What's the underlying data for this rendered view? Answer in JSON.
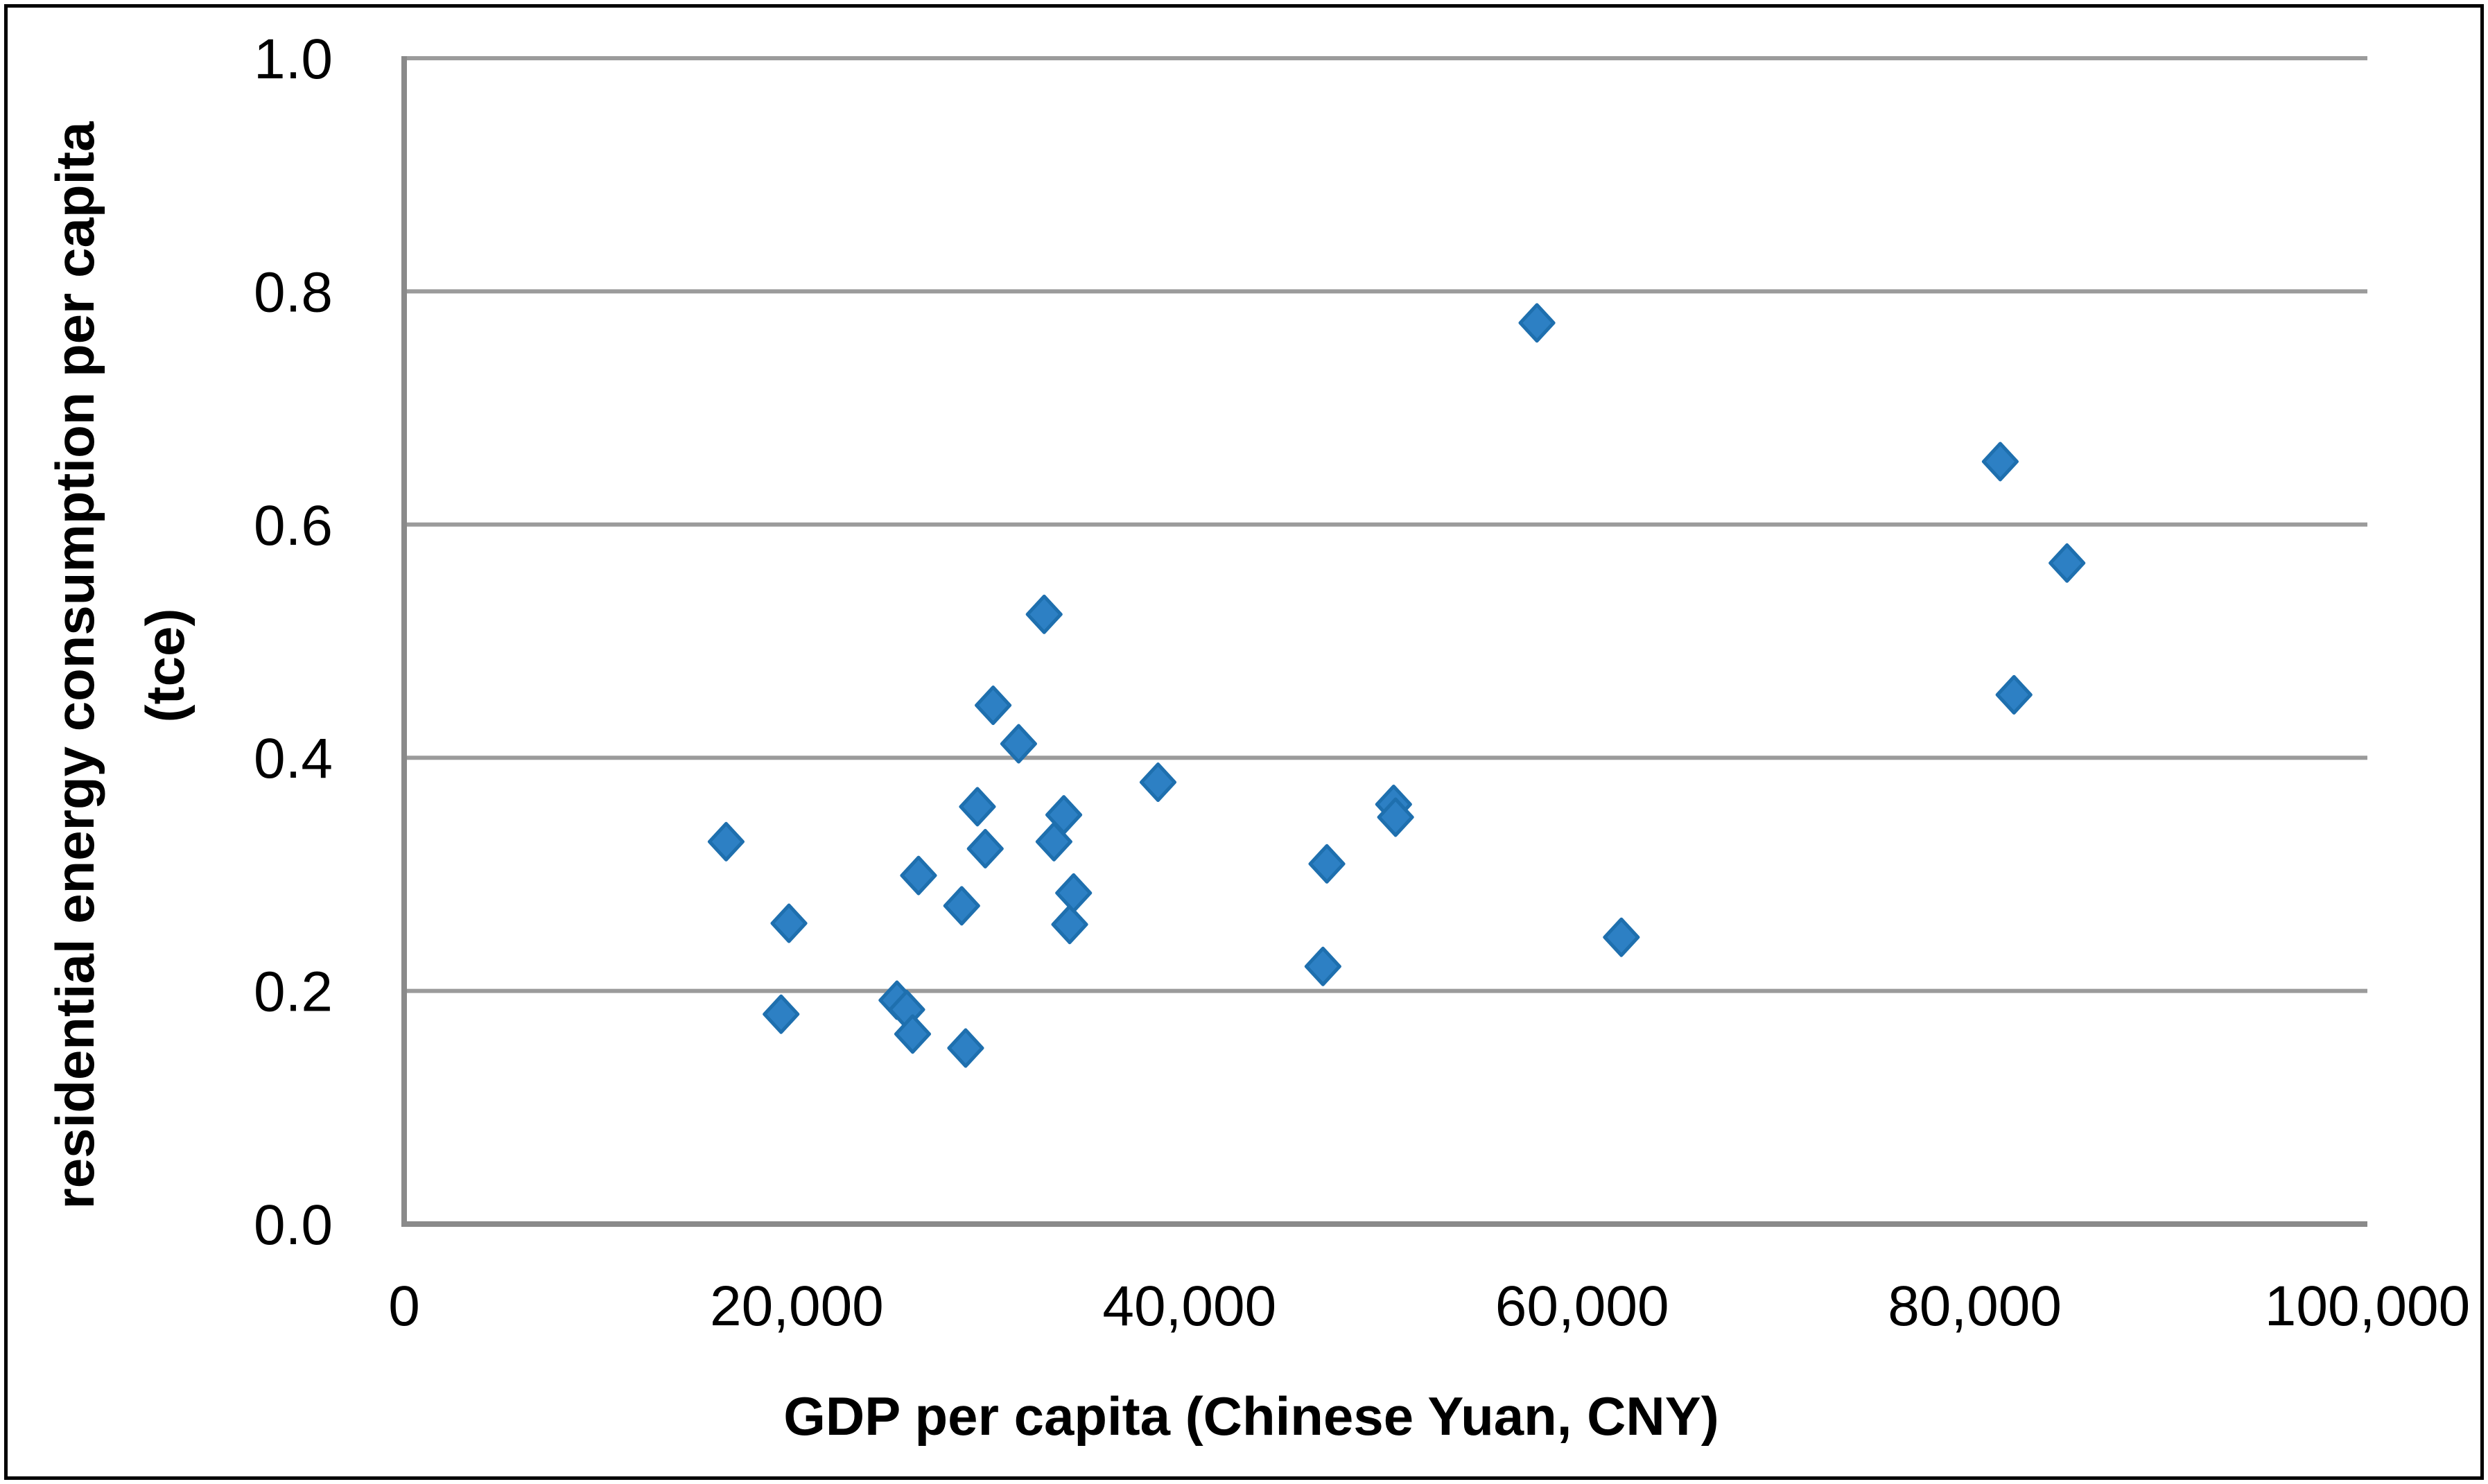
{
  "figure": {
    "background": "#ffffff",
    "border_color": "#000000"
  },
  "chart_data": {
    "type": "scatter",
    "title": "",
    "xlabel": "GDP per capita (Chinese Yuan, CNY)",
    "ylabel_line1": "residential energy consumption per capita",
    "ylabel_line2": "(tce)",
    "xlim": [
      0,
      100000
    ],
    "ylim": [
      0,
      1.0
    ],
    "x_ticks": [
      0,
      20000,
      40000,
      60000,
      80000,
      100000
    ],
    "x_tick_labels": [
      "0",
      "20,000",
      "40,000",
      "60,000",
      "80,000",
      "100,000"
    ],
    "y_ticks": [
      0,
      0.2,
      0.4,
      0.6,
      0.8,
      1.0
    ],
    "y_tick_labels": [
      "0.0",
      "0.2",
      "0.4",
      "0.6",
      "0.8",
      "1.0"
    ],
    "grid": "horizontal",
    "legend": "none",
    "gridline_color": "#9b9b9b",
    "axis_line_color": "#8a8a8a",
    "marker": {
      "shape": "diamond",
      "fill": "#2d80c4",
      "stroke": "#1e6fae"
    },
    "points": [
      {
        "x": 16400,
        "y": 0.328
      },
      {
        "x": 19600,
        "y": 0.258
      },
      {
        "x": 19200,
        "y": 0.18
      },
      {
        "x": 25100,
        "y": 0.192
      },
      {
        "x": 25600,
        "y": 0.184
      },
      {
        "x": 25900,
        "y": 0.163
      },
      {
        "x": 26200,
        "y": 0.299
      },
      {
        "x": 28400,
        "y": 0.273
      },
      {
        "x": 28600,
        "y": 0.151
      },
      {
        "x": 29200,
        "y": 0.358
      },
      {
        "x": 29600,
        "y": 0.322
      },
      {
        "x": 30000,
        "y": 0.445
      },
      {
        "x": 31300,
        "y": 0.412
      },
      {
        "x": 32600,
        "y": 0.523
      },
      {
        "x": 33100,
        "y": 0.328
      },
      {
        "x": 33600,
        "y": 0.351
      },
      {
        "x": 33900,
        "y": 0.257
      },
      {
        "x": 34100,
        "y": 0.284
      },
      {
        "x": 38400,
        "y": 0.379
      },
      {
        "x": 46800,
        "y": 0.221
      },
      {
        "x": 47000,
        "y": 0.309
      },
      {
        "x": 50400,
        "y": 0.36
      },
      {
        "x": 50500,
        "y": 0.349
      },
      {
        "x": 57700,
        "y": 0.773
      },
      {
        "x": 62000,
        "y": 0.246
      },
      {
        "x": 81300,
        "y": 0.654
      },
      {
        "x": 82000,
        "y": 0.454
      },
      {
        "x": 84700,
        "y": 0.567
      }
    ]
  }
}
